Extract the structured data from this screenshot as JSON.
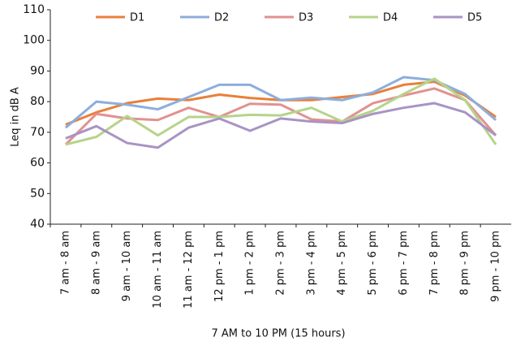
{
  "chart_data": {
    "type": "line",
    "y_label": "Leq in dB A",
    "x_label": "7 AM to 10 PM (15 hours)",
    "categories": [
      "7 am - 8 am",
      "8 am - 9 am",
      "9 am - 10 am",
      "10 am - 11 am",
      "11 am - 12 pm",
      "12 pm - 1 pm",
      "1 pm - 2 pm",
      "2 pm - 3 pm",
      "3 pm - 4 pm",
      "4 pm - 5 pm",
      "5 pm - 6 pm",
      "6 pm - 7 pm",
      "7 pm - 8 pm",
      "8 pm - 9 pm",
      "9 pm - 10 pm"
    ],
    "series": [
      {
        "name": "D1",
        "color": "#e8803a",
        "values": [
          72.5,
          76.5,
          79.5,
          81,
          80.5,
          82.3,
          81.2,
          80.5,
          80.5,
          81.5,
          82.5,
          85.5,
          86.5,
          82,
          75
        ]
      },
      {
        "name": "D2",
        "color": "#8caedd",
        "values": [
          71.5,
          80,
          79,
          77.5,
          81.5,
          85.5,
          85.5,
          80.5,
          81.3,
          80.5,
          83,
          88,
          87,
          82.5,
          74
        ]
      },
      {
        "name": "D3",
        "color": "#e29191",
        "values": [
          66,
          76,
          74.5,
          74,
          78,
          75,
          79.3,
          79,
          74.2,
          73.5,
          79.5,
          82,
          84.3,
          80.5,
          69
        ]
      },
      {
        "name": "D4",
        "color": "#b5d489",
        "values": [
          66,
          68.5,
          75.3,
          69,
          75,
          75,
          75.7,
          75.5,
          78,
          73.5,
          77,
          82.5,
          87.5,
          80.5,
          66
        ]
      },
      {
        "name": "D5",
        "color": "#a993c4",
        "values": [
          68,
          72,
          66.5,
          65,
          71.5,
          74.5,
          70.5,
          74.5,
          73.5,
          73,
          76,
          78,
          79.5,
          76.5,
          69
        ]
      }
    ],
    "ylim": [
      40,
      110
    ],
    "yticks": [
      40,
      50,
      60,
      70,
      80,
      90,
      100,
      110
    ],
    "grid": false
  }
}
